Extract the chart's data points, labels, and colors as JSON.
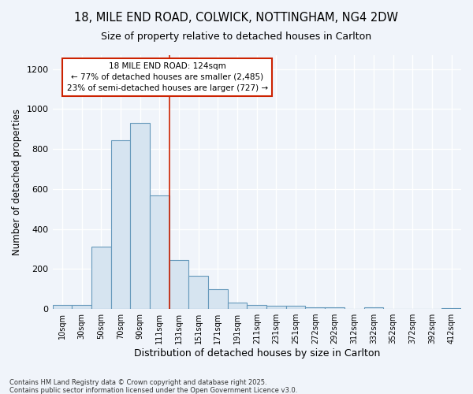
{
  "title1": "18, MILE END ROAD, COLWICK, NOTTINGHAM, NG4 2DW",
  "title2": "Size of property relative to detached houses in Carlton",
  "xlabel": "Distribution of detached houses by size in Carlton",
  "ylabel": "Number of detached properties",
  "bin_labels": [
    "10sqm",
    "30sqm",
    "50sqm",
    "70sqm",
    "90sqm",
    "111sqm",
    "131sqm",
    "151sqm",
    "171sqm",
    "191sqm",
    "211sqm",
    "231sqm",
    "251sqm",
    "272sqm",
    "292sqm",
    "312sqm",
    "332sqm",
    "352sqm",
    "372sqm",
    "392sqm",
    "412sqm"
  ],
  "bar_heights": [
    20,
    20,
    310,
    845,
    930,
    570,
    245,
    165,
    100,
    30,
    20,
    15,
    15,
    10,
    10,
    0,
    10,
    0,
    0,
    0,
    5
  ],
  "bar_color": "#d6e4f0",
  "bar_edge_color": "#6699bb",
  "red_line_x": 5.5,
  "annotation_text": "18 MILE END ROAD: 124sqm\n← 77% of detached houses are smaller (2,485)\n23% of semi-detached houses are larger (727) →",
  "annotation_box_color": "#ffffff",
  "annotation_box_edge": "#cc2200",
  "footnote1": "Contains HM Land Registry data © Crown copyright and database right 2025.",
  "footnote2": "Contains public sector information licensed under the Open Government Licence v3.0.",
  "bg_color": "#f0f4fa",
  "plot_bg_color": "#f0f4fa",
  "grid_color": "#d0d8e8",
  "ylim": [
    0,
    1270
  ],
  "yticks": [
    0,
    200,
    400,
    600,
    800,
    1000,
    1200
  ]
}
